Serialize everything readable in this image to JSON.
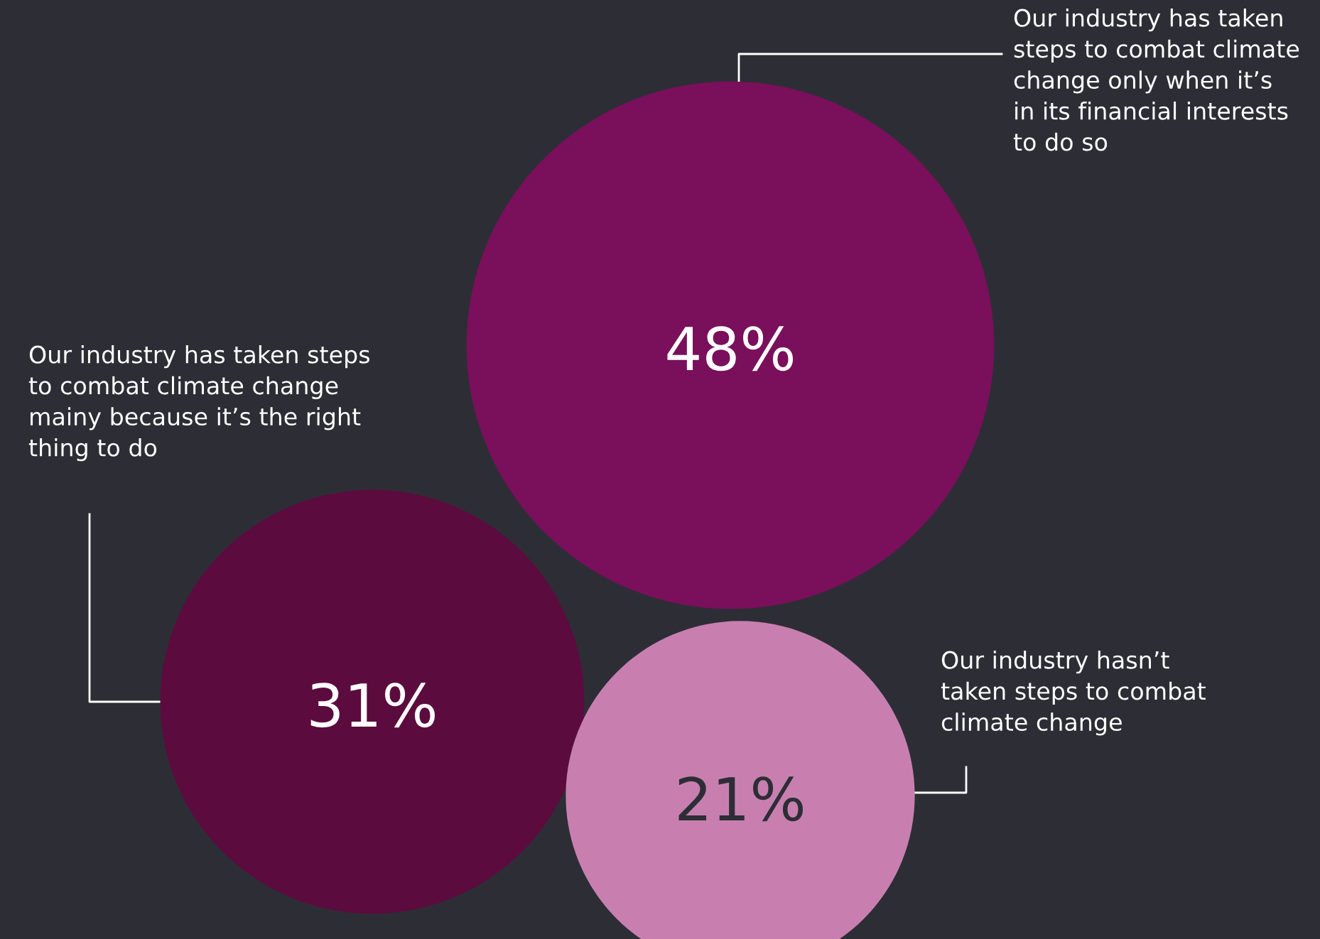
{
  "chart_data": {
    "type": "other",
    "categories": [
      "Our industry has taken\nsteps to combat climate\nchange only when it’s\nin its financial interests\nto do so",
      "Our industry has taken steps\nto combat climate change\nmainy because it’s the right\nthing to do",
      "Our industry hasn’t\ntaken steps to combat\nclimate change"
    ],
    "values": [
      48,
      31,
      21
    ],
    "value_labels": [
      "48%",
      "31%",
      "21%"
    ],
    "colors": [
      "#7a0f5c",
      "#5c0b3e",
      "#c87fb0"
    ]
  }
}
